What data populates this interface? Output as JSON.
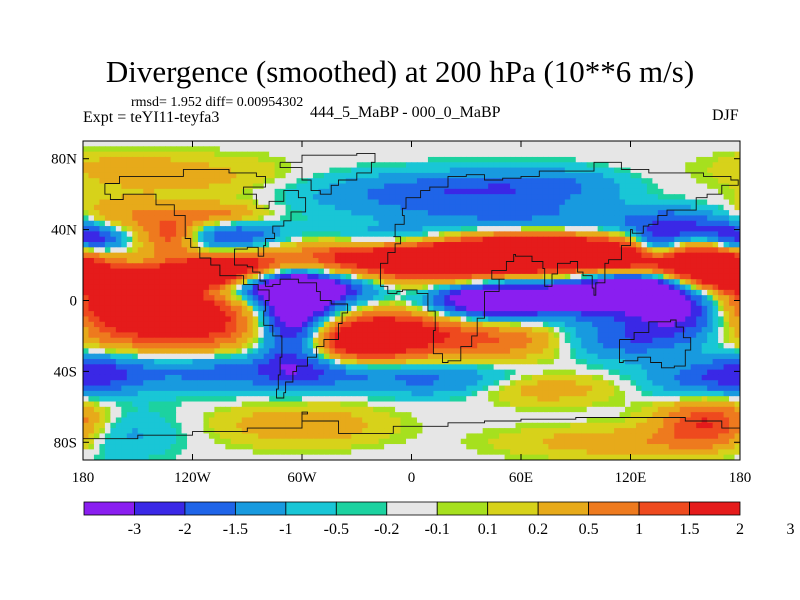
{
  "title": "Divergence (smoothed) at 200 hPa (10**6 m/s)",
  "stats_text": "rmsd= 1.952  diff= 0.00954302",
  "experiment": "Expt = teYI11-teyfa3",
  "center_label": "444_5_MaBP - 000_0_MaBP",
  "season": "DJF",
  "chart_data": {
    "type": "heatmap",
    "title": "Divergence (smoothed) at 200 hPa (10**6 m/s)",
    "x_ticks": [
      {
        "value": -180,
        "label": "180"
      },
      {
        "value": -120,
        "label": "120W"
      },
      {
        "value": -60,
        "label": "60W"
      },
      {
        "value": 0,
        "label": "0"
      },
      {
        "value": 60,
        "label": "60E"
      },
      {
        "value": 120,
        "label": "120E"
      },
      {
        "value": 180,
        "label": "180"
      }
    ],
    "y_ticks": [
      {
        "value": 80,
        "label": "80N"
      },
      {
        "value": 40,
        "label": "40N"
      },
      {
        "value": 0,
        "label": "0"
      },
      {
        "value": -40,
        "label": "40S"
      },
      {
        "value": -80,
        "label": "80S"
      }
    ],
    "xlim": [
      -180,
      180
    ],
    "ylim": [
      -90,
      90
    ],
    "colorbar": {
      "labels": [
        "-3",
        "-2",
        "-1.5",
        "-1",
        "-0.5",
        "-0.2",
        "-0.1",
        "0.1",
        "0.2",
        "0.5",
        "1",
        "1.5",
        "2",
        "3"
      ],
      "colors": [
        "#8a1ef0",
        "#3a28e6",
        "#1f64e8",
        "#189adf",
        "#19c6d6",
        "#1cd2a0",
        "#e6e6e6",
        "#a6e01e",
        "#d7d21a",
        "#e7aa1a",
        "#ee7a1e",
        "#ee4a1e",
        "#e51b1b"
      ]
    },
    "field_blobs": [
      {
        "lon": -160,
        "lat": 45,
        "rlon": 22,
        "rlat": 9,
        "v": 1.2
      },
      {
        "lon": -175,
        "lat": 35,
        "rlon": 15,
        "rlat": 6,
        "v": -2.4
      },
      {
        "lon": -130,
        "lat": 35,
        "rlon": 12,
        "rlat": 8,
        "v": 1.8
      },
      {
        "lon": -100,
        "lat": 35,
        "rlon": 20,
        "rlat": 8,
        "v": -2.0
      },
      {
        "lon": -105,
        "lat": 48,
        "rlon": 18,
        "rlat": 5,
        "v": 1.5
      },
      {
        "lon": -95,
        "lat": 20,
        "rlon": 18,
        "rlat": 7,
        "v": 2.5
      },
      {
        "lon": -150,
        "lat": 10,
        "rlon": 30,
        "rlat": 6,
        "v": 2.8
      },
      {
        "lon": -120,
        "lat": 15,
        "rlon": 15,
        "rlat": 5,
        "v": 2.4
      },
      {
        "lon": -130,
        "lat": -12,
        "rlon": 45,
        "rlat": 12,
        "v": 2.8
      },
      {
        "lon": -150,
        "lat": -4,
        "rlon": 25,
        "rlat": 5,
        "v": 2.0
      },
      {
        "lon": -60,
        "lat": 8,
        "rlon": 30,
        "rlat": 6,
        "v": -2.8
      },
      {
        "lon": -65,
        "lat": -12,
        "rlon": 14,
        "rlat": 18,
        "v": -3.2
      },
      {
        "lon": -30,
        "lat": -5,
        "rlon": 35,
        "rlat": 10,
        "v": -2.2
      },
      {
        "lon": -5,
        "lat": -10,
        "rlon": 30,
        "rlat": 14,
        "v": 3.0
      },
      {
        "lon": -30,
        "lat": -22,
        "rlon": 22,
        "rlat": 10,
        "v": 2.5
      },
      {
        "lon": -40,
        "lat": 25,
        "rlon": 35,
        "rlat": 8,
        "v": 1.6
      },
      {
        "lon": -10,
        "lat": 35,
        "rlon": 30,
        "rlat": 5,
        "v": -1.4
      },
      {
        "lon": 30,
        "lat": 22,
        "rlon": 40,
        "rlat": 10,
        "v": 3.0
      },
      {
        "lon": 70,
        "lat": 28,
        "rlon": 40,
        "rlat": 8,
        "v": 2.6
      },
      {
        "lon": 130,
        "lat": 22,
        "rlon": 35,
        "rlat": 9,
        "v": 2.8
      },
      {
        "lon": 165,
        "lat": 18,
        "rlon": 20,
        "rlat": 10,
        "v": 2.3
      },
      {
        "lon": 35,
        "lat": 0,
        "rlon": 25,
        "rlat": 8,
        "v": -3.0
      },
      {
        "lon": 90,
        "lat": 4,
        "rlon": 40,
        "rlat": 9,
        "v": -2.6
      },
      {
        "lon": 125,
        "lat": 8,
        "rlon": 20,
        "rlat": 8,
        "v": -3.0
      },
      {
        "lon": 150,
        "lat": -8,
        "rlon": 20,
        "rlat": 10,
        "v": -2.2
      },
      {
        "lon": 60,
        "lat": -22,
        "rlon": 30,
        "rlat": 8,
        "v": 1.5
      },
      {
        "lon": 110,
        "lat": -22,
        "rlon": 30,
        "rlat": 8,
        "v": -1.6
      },
      {
        "lon": 135,
        "lat": 30,
        "rlon": 10,
        "rlat": 6,
        "v": -2.4
      },
      {
        "lon": 150,
        "lat": 40,
        "rlon": 25,
        "rlat": 8,
        "v": -1.8
      },
      {
        "lon": 60,
        "lat": 45,
        "rlon": 50,
        "rlat": 8,
        "v": -1.2
      },
      {
        "lon": 0,
        "lat": 60,
        "rlon": 45,
        "rlat": 8,
        "v": -1.0
      },
      {
        "lon": 80,
        "lat": 65,
        "rlon": 50,
        "rlat": 7,
        "v": -1.2
      },
      {
        "lon": -120,
        "lat": 70,
        "rlon": 35,
        "rlat": 8,
        "v": 0.7
      },
      {
        "lon": -160,
        "lat": 75,
        "rlon": 20,
        "rlat": 6,
        "v": 0.6
      },
      {
        "lon": 130,
        "lat": 65,
        "rlon": 30,
        "rlat": 8,
        "v": 0.6
      },
      {
        "lon": -170,
        "lat": -40,
        "rlon": 20,
        "rlat": 8,
        "v": -1.4
      },
      {
        "lon": -110,
        "lat": -40,
        "rlon": 30,
        "rlat": 8,
        "v": -1.2
      },
      {
        "lon": -40,
        "lat": -40,
        "rlon": 30,
        "rlat": 7,
        "v": -1.3
      },
      {
        "lon": 20,
        "lat": -45,
        "rlon": 30,
        "rlat": 7,
        "v": -1.1
      },
      {
        "lon": 70,
        "lat": -50,
        "rlon": 30,
        "rlat": 6,
        "v": 0.9
      },
      {
        "lon": 160,
        "lat": -45,
        "rlon": 25,
        "rlat": 8,
        "v": -1.2
      },
      {
        "lon": 165,
        "lat": -70,
        "rlon": 20,
        "rlat": 10,
        "v": 2.5
      },
      {
        "lon": -170,
        "lat": -75,
        "rlon": 25,
        "rlat": 10,
        "v": -1.0
      },
      {
        "lon": -60,
        "lat": -70,
        "rlon": 30,
        "rlat": 8,
        "v": 1.0
      },
      {
        "lon": 110,
        "lat": -80,
        "rlon": 40,
        "rlat": 6,
        "v": 0.8
      }
    ],
    "coastlines": [
      {
        "name": "americas",
        "points": [
          [
            -168,
            66
          ],
          [
            -160,
            70
          ],
          [
            -140,
            70
          ],
          [
            -125,
            74
          ],
          [
            -100,
            72
          ],
          [
            -85,
            70
          ],
          [
            -80,
            64
          ],
          [
            -92,
            60
          ],
          [
            -85,
            52
          ],
          [
            -78,
            56
          ],
          [
            -70,
            62
          ],
          [
            -62,
            58
          ],
          [
            -58,
            50
          ],
          [
            -66,
            45
          ],
          [
            -70,
            42
          ],
          [
            -76,
            38
          ],
          [
            -75,
            35
          ],
          [
            -80,
            31
          ],
          [
            -81,
            25
          ],
          [
            -84,
            30
          ],
          [
            -90,
            29
          ],
          [
            -97,
            26
          ],
          [
            -97,
            20
          ],
          [
            -90,
            19
          ],
          [
            -87,
            16
          ],
          [
            -83,
            11
          ],
          [
            -80,
            8
          ],
          [
            -76,
            9
          ],
          [
            -72,
            12
          ],
          [
            -62,
            10
          ],
          [
            -52,
            5
          ],
          [
            -50,
            0
          ],
          [
            -44,
            -2
          ],
          [
            -35,
            -7
          ],
          [
            -38,
            -13
          ],
          [
            -40,
            -22
          ],
          [
            -48,
            -26
          ],
          [
            -52,
            -32
          ],
          [
            -57,
            -37
          ],
          [
            -63,
            -40
          ],
          [
            -65,
            -46
          ],
          [
            -69,
            -52
          ],
          [
            -70,
            -55
          ],
          [
            -74,
            -50
          ],
          [
            -73,
            -42
          ],
          [
            -72,
            -32
          ],
          [
            -71,
            -20
          ],
          [
            -76,
            -14
          ],
          [
            -81,
            -6
          ],
          [
            -80,
            0
          ],
          [
            -78,
            6
          ],
          [
            -84,
            9
          ],
          [
            -92,
            14
          ],
          [
            -105,
            20
          ],
          [
            -110,
            24
          ],
          [
            -116,
            30
          ],
          [
            -121,
            35
          ],
          [
            -124,
            42
          ],
          [
            -124,
            48
          ],
          [
            -130,
            54
          ],
          [
            -140,
            60
          ],
          [
            -150,
            60
          ],
          [
            -158,
            57
          ],
          [
            -165,
            60
          ],
          [
            -168,
            66
          ]
        ]
      },
      {
        "name": "eurasia-africa",
        "points": [
          [
            -10,
            36
          ],
          [
            -9,
            43
          ],
          [
            -4,
            48
          ],
          [
            -5,
            52
          ],
          [
            -3,
            58
          ],
          [
            5,
            60
          ],
          [
            5,
            62
          ],
          [
            10,
            64
          ],
          [
            20,
            70
          ],
          [
            30,
            71
          ],
          [
            40,
            68
          ],
          [
            50,
            69
          ],
          [
            60,
            70
          ],
          [
            70,
            73
          ],
          [
            80,
            73
          ],
          [
            100,
            78
          ],
          [
            115,
            74
          ],
          [
            130,
            72
          ],
          [
            140,
            72
          ],
          [
            160,
            70
          ],
          [
            175,
            68
          ],
          [
            179,
            65
          ],
          [
            170,
            60
          ],
          [
            162,
            58
          ],
          [
            156,
            51
          ],
          [
            140,
            48
          ],
          [
            135,
            43
          ],
          [
            130,
            42
          ],
          [
            127,
            38
          ],
          [
            121,
            40
          ],
          [
            120,
            31
          ],
          [
            115,
            23
          ],
          [
            108,
            21
          ],
          [
            106,
            10
          ],
          [
            101,
            3
          ],
          [
            100,
            7
          ],
          [
            99,
            14
          ],
          [
            94,
            16
          ],
          [
            91,
            22
          ],
          [
            87,
            21
          ],
          [
            80,
            15
          ],
          [
            77,
            8
          ],
          [
            73,
            18
          ],
          [
            72,
            22
          ],
          [
            66,
            25
          ],
          [
            57,
            26
          ],
          [
            56,
            22
          ],
          [
            52,
            17
          ],
          [
            44,
            12
          ],
          [
            51,
            12
          ],
          [
            48,
            5
          ],
          [
            40,
            -3
          ],
          [
            40,
            -10
          ],
          [
            36,
            -20
          ],
          [
            33,
            -26
          ],
          [
            27,
            -34
          ],
          [
            20,
            -35
          ],
          [
            17,
            -30
          ],
          [
            12,
            -17
          ],
          [
            13,
            -6
          ],
          [
            9,
            0
          ],
          [
            9,
            4
          ],
          [
            3,
            6
          ],
          [
            -5,
            5
          ],
          [
            -8,
            4
          ],
          [
            -13,
            8
          ],
          [
            -17,
            14
          ],
          [
            -17,
            21
          ],
          [
            -13,
            27
          ],
          [
            -9,
            32
          ],
          [
            -6,
            36
          ],
          [
            -10,
            36
          ]
        ]
      },
      {
        "name": "australia",
        "points": [
          [
            114,
            -22
          ],
          [
            122,
            -18
          ],
          [
            130,
            -12
          ],
          [
            137,
            -12
          ],
          [
            142,
            -11
          ],
          [
            145,
            -15
          ],
          [
            149,
            -21
          ],
          [
            153,
            -28
          ],
          [
            150,
            -37
          ],
          [
            144,
            -38
          ],
          [
            137,
            -35
          ],
          [
            131,
            -32
          ],
          [
            124,
            -34
          ],
          [
            116,
            -35
          ],
          [
            114,
            -22
          ]
        ]
      },
      {
        "name": "greenland",
        "points": [
          [
            -72,
            78
          ],
          [
            -60,
            82
          ],
          [
            -30,
            83
          ],
          [
            -20,
            78
          ],
          [
            -22,
            72
          ],
          [
            -30,
            68
          ],
          [
            -40,
            65
          ],
          [
            -44,
            60
          ],
          [
            -50,
            62
          ],
          [
            -55,
            68
          ],
          [
            -60,
            75
          ],
          [
            -72,
            78
          ]
        ]
      },
      {
        "name": "antarctica",
        "points": [
          [
            -180,
            -78
          ],
          [
            -150,
            -76
          ],
          [
            -120,
            -74
          ],
          [
            -90,
            -72
          ],
          [
            -60,
            -64
          ],
          [
            -57,
            -63
          ],
          [
            -60,
            -68
          ],
          [
            -40,
            -75
          ],
          [
            -10,
            -71
          ],
          [
            20,
            -69
          ],
          [
            40,
            -68
          ],
          [
            60,
            -67
          ],
          [
            90,
            -66
          ],
          [
            120,
            -66
          ],
          [
            150,
            -68
          ],
          [
            170,
            -72
          ],
          [
            180,
            -77
          ]
        ]
      }
    ]
  }
}
